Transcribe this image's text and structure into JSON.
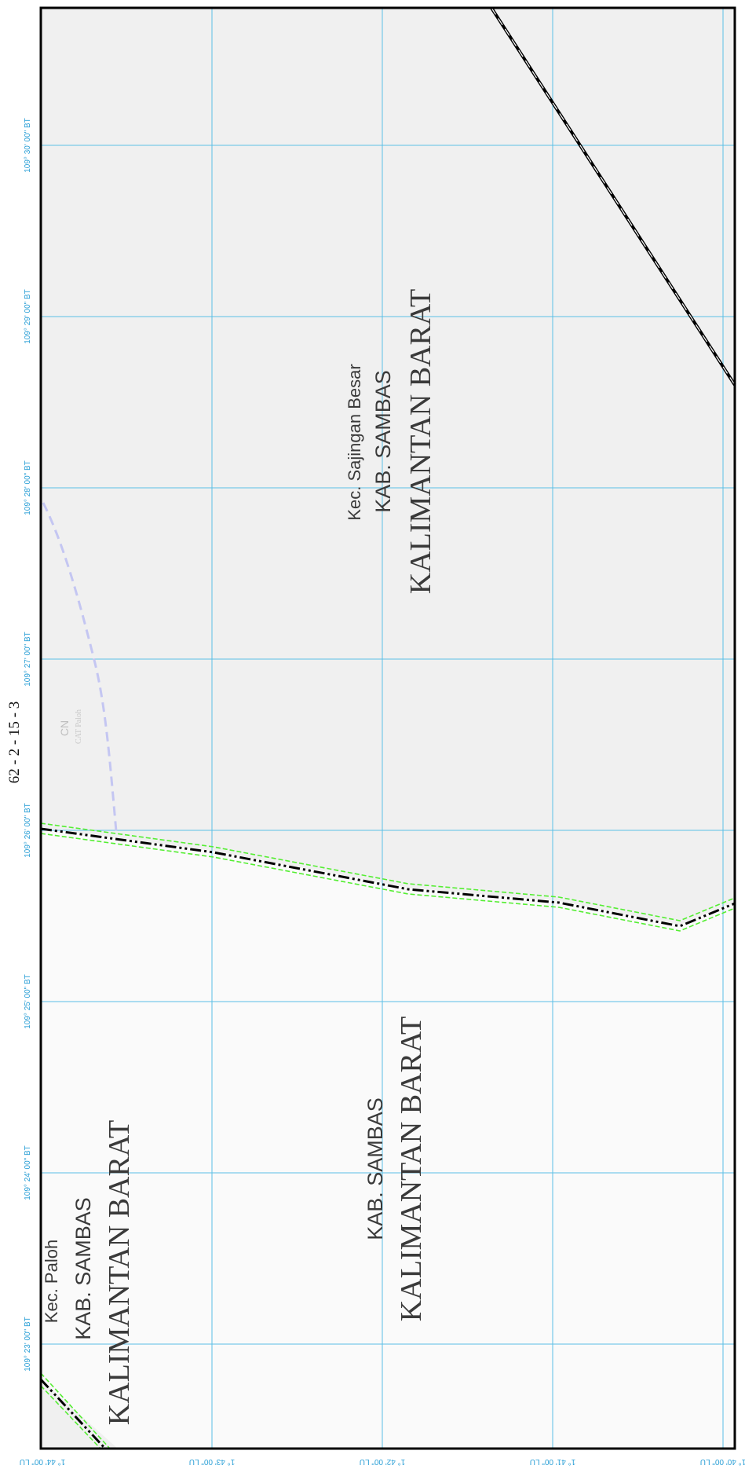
{
  "sheet_id": "62 - 2 - 15 - 3",
  "colors": {
    "grid": "#5bbfe6",
    "tick_label": "#2a9fd6",
    "frame": "#000000",
    "boundary": "#000000",
    "boundary_halo": "#55ee33",
    "region_north": "#f0f0f0",
    "region_south": "#fafafa",
    "dashed_line": "#c4c6f2",
    "label_text": "#3a3a3a",
    "faint_text": "#bfbfbf"
  },
  "longitude_ticks": [
    "109° 23' 00\" BT",
    "109° 24' 00\" BT",
    "109° 25' 00\" BT",
    "109° 26' 00\" BT",
    "109° 27' 00\" BT",
    "109° 28' 00\" BT",
    "109° 29' 00\" BT",
    "109° 30' 00\" BT"
  ],
  "latitude_ticks": [
    "1° 44' 00\" LU",
    "1° 43' 00\" LU",
    "1° 42' 00\" LU",
    "1° 41' 00\" LU",
    "1° 40' 00\" LU"
  ],
  "labels": {
    "north": {
      "district": "Kec. Sajingan Besar",
      "regency": "KAB. SAMBAS",
      "province": "KALIMANTAN BARAT"
    },
    "south": {
      "regency": "KAB. SAMBAS",
      "province": "KALIMANTAN BARAT"
    },
    "southwest": {
      "district": "Kec. Paloh",
      "regency": "KAB. SAMBAS",
      "province": "KALIMANTAN BARAT"
    },
    "faint": {
      "code": "CN",
      "name": "CAT Paloh"
    }
  }
}
